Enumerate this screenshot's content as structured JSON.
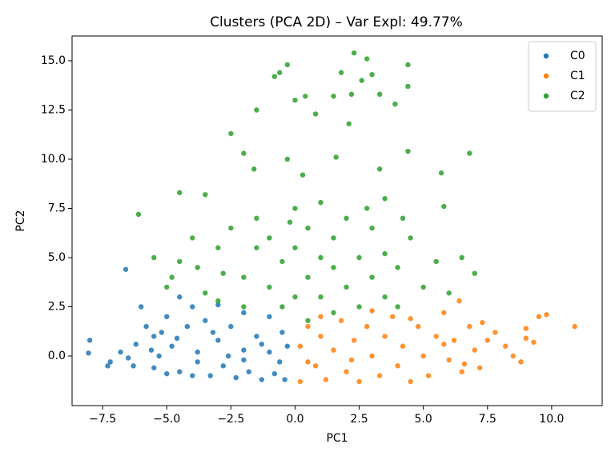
{
  "chart_data": {
    "type": "scatter",
    "title": "Clusters (PCA 2D) – Var Expl: 49.77%",
    "x_label": "PC1",
    "y_label": "PC2",
    "xlim": [
      -8.69,
      11.97
    ],
    "ylim": [
      -2.52,
      16.26
    ],
    "xticks": [
      {
        "value": -7.5,
        "label": "−7.5"
      },
      {
        "value": -5,
        "label": "−5.0"
      },
      {
        "value": -2.5,
        "label": "−2.5"
      },
      {
        "value": 0,
        "label": "0.0"
      },
      2.5,
      {
        "value": 5,
        "label": "5.0"
      },
      7.5,
      {
        "value": 10,
        "label": "10.0"
      }
    ],
    "yticks": [
      {
        "value": 0,
        "label": "0.0"
      },
      2.5,
      {
        "value": 5,
        "label": "5.0"
      },
      7.5,
      {
        "value": 10,
        "label": "10.0"
      },
      12.5,
      {
        "value": 15,
        "label": "15.0"
      }
    ],
    "legend": "upper right",
    "series": [
      {
        "name": "C0",
        "color": "#1f77b4",
        "x": [
          -8.0,
          -8.05,
          -7.2,
          -7.3,
          -6.8,
          -6.5,
          -6.2,
          -6.3,
          -6.0,
          -5.8,
          -5.6,
          -5.5,
          -5.2,
          -5.0,
          -5.0,
          -4.8,
          -4.5,
          -4.5,
          -4.2,
          -4.0,
          -4.0,
          -3.8,
          -3.5,
          -3.3,
          -3.0,
          -3.0,
          -2.8,
          -2.5,
          -2.3,
          -2.0,
          -2.0,
          -1.8,
          -1.5,
          -1.3,
          -1.0,
          -1.0,
          -0.8,
          -0.5,
          -0.4,
          -0.3,
          -6.6,
          -5.5,
          -3.8,
          -2.6,
          -1.3,
          -0.6,
          -4.6,
          -3.2,
          -2.0,
          -5.3
        ],
        "values": [
          0.8,
          0.15,
          -0.3,
          -0.5,
          0.2,
          -0.1,
          0.6,
          -0.5,
          2.5,
          1.5,
          0.3,
          -0.6,
          1.2,
          -0.9,
          2.0,
          0.5,
          3.0,
          -0.8,
          1.5,
          -1.0,
          2.5,
          0.2,
          1.8,
          -1.0,
          0.8,
          2.6,
          -0.5,
          1.5,
          -1.1,
          0.3,
          2.2,
          -0.8,
          1.0,
          -1.2,
          0.2,
          2.0,
          -0.9,
          1.2,
          -1.2,
          0.5,
          4.4,
          1.0,
          -0.3,
          0.0,
          0.6,
          -0.3,
          0.9,
          1.2,
          -0.2,
          0.0
        ]
      },
      {
        "name": "C1",
        "color": "#ff7f0e",
        "x": [
          0.2,
          0.2,
          0.5,
          0.8,
          1.0,
          1.2,
          1.5,
          1.8,
          2.0,
          2.3,
          2.5,
          2.8,
          3.0,
          3.3,
          3.5,
          3.8,
          4.0,
          4.2,
          4.5,
          4.8,
          5.0,
          5.2,
          5.5,
          5.8,
          6.0,
          6.2,
          6.5,
          6.8,
          7.0,
          7.2,
          7.5,
          7.8,
          8.2,
          8.5,
          8.8,
          9.0,
          9.0,
          9.3,
          9.5,
          9.8,
          10.9,
          6.6,
          7.3,
          5.8,
          4.5,
          3.0,
          1.0,
          6.4,
          0.5,
          2.2
        ],
        "values": [
          -1.3,
          0.5,
          1.5,
          -0.5,
          1.0,
          -1.2,
          0.3,
          1.8,
          -0.8,
          0.8,
          -1.3,
          1.5,
          0.0,
          -1.0,
          1.0,
          2.0,
          -0.5,
          0.5,
          -1.3,
          1.5,
          0.0,
          -1.0,
          1.0,
          2.2,
          -0.2,
          0.8,
          -0.8,
          1.5,
          0.3,
          -0.6,
          0.8,
          1.2,
          0.5,
          0.0,
          -0.3,
          1.4,
          0.9,
          0.7,
          2.0,
          2.1,
          1.5,
          -0.4,
          1.7,
          0.6,
          1.9,
          2.3,
          2.0,
          2.8,
          -0.3,
          -0.2
        ]
      },
      {
        "name": "C2",
        "color": "#2ca02c",
        "x": [
          -6.1,
          -4.5,
          -3.5,
          -2.5,
          -2.0,
          -1.5,
          -0.8,
          -0.6,
          -0.3,
          0.0,
          0.4,
          0.8,
          1.5,
          1.8,
          2.2,
          2.3,
          2.6,
          2.8,
          3.0,
          3.3,
          3.9,
          4.4,
          4.4,
          4.4,
          5.7,
          6.8,
          1.6,
          3.3,
          0.3,
          -0.3,
          -1.6,
          2.1,
          -5.5,
          -5.0,
          -4.5,
          -4.0,
          -3.5,
          -3.0,
          -3.0,
          -2.5,
          -2.0,
          -2.0,
          -1.5,
          -1.5,
          -1.0,
          -1.0,
          -0.5,
          -0.5,
          0.0,
          0.0,
          0.0,
          0.5,
          0.5,
          0.5,
          1.0,
          1.0,
          1.0,
          1.5,
          1.5,
          1.5,
          2.0,
          2.0,
          2.5,
          2.5,
          3.0,
          3.0,
          3.5,
          3.5,
          4.0,
          4.0,
          4.5,
          5.0,
          5.5,
          5.8,
          6.0,
          6.5,
          7.0,
          -4.8,
          -3.8,
          -2.8,
          -0.2,
          2.8,
          4.2,
          3.5
        ],
        "values": [
          7.2,
          8.3,
          8.2,
          11.3,
          10.3,
          12.5,
          14.2,
          14.4,
          14.8,
          13.0,
          13.2,
          12.3,
          13.2,
          14.4,
          13.3,
          15.4,
          14.0,
          15.1,
          14.3,
          13.3,
          12.8,
          14.8,
          13.7,
          10.4,
          9.3,
          10.3,
          10.1,
          9.5,
          9.2,
          10.0,
          9.5,
          11.8,
          5.0,
          3.5,
          4.8,
          6.0,
          3.2,
          5.5,
          2.8,
          6.5,
          4.0,
          2.5,
          5.5,
          7.0,
          3.5,
          6.0,
          2.5,
          4.8,
          7.5,
          3.0,
          5.5,
          1.8,
          4.0,
          6.5,
          3.0,
          5.0,
          7.8,
          2.2,
          4.5,
          6.0,
          3.5,
          7.0,
          2.5,
          5.0,
          4.0,
          6.5,
          3.0,
          5.2,
          2.5,
          4.5,
          6.0,
          3.5,
          4.8,
          7.6,
          3.2,
          5.0,
          4.2,
          4.0,
          4.5,
          4.2,
          6.8,
          7.5,
          7.0,
          8.0
        ]
      }
    ]
  }
}
